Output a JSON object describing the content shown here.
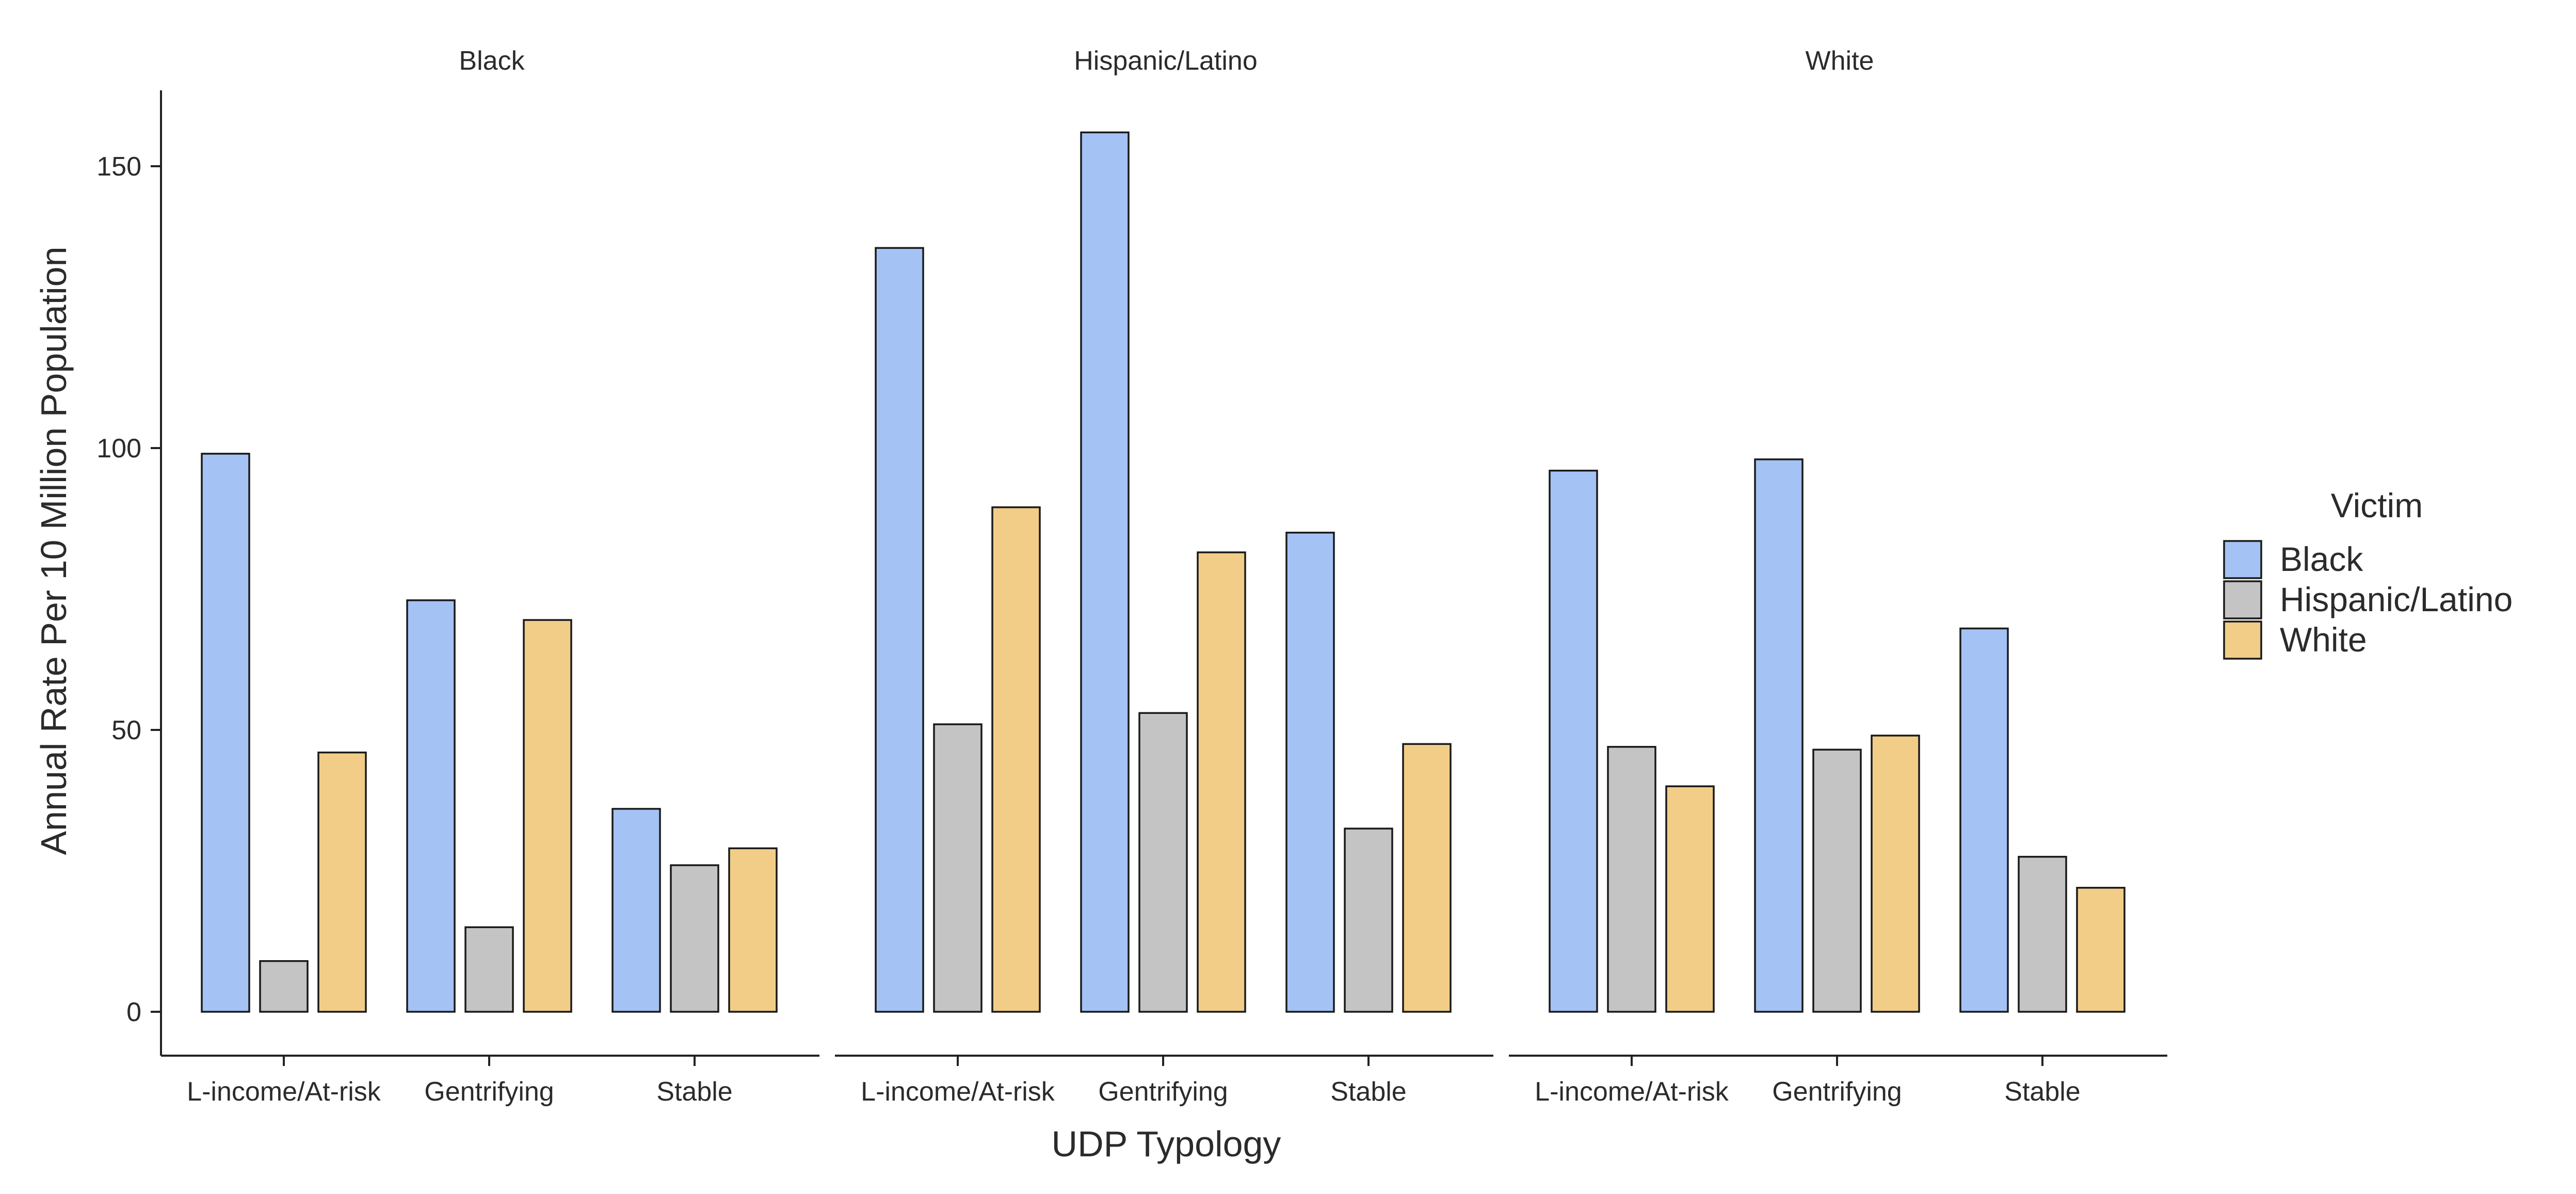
{
  "chart_data": {
    "type": "bar",
    "facet_by": "suspect race",
    "facets": [
      "Black",
      "Hispanic/Latino",
      "White"
    ],
    "categories": [
      "L-income/At-risk",
      "Gentrifying",
      "Stable"
    ],
    "xlabel": "UDP Typology",
    "ylabel": "Annual Rate Per 10 Million Population",
    "ylim": [
      0,
      160
    ],
    "yticks": [
      0,
      50,
      100,
      150
    ],
    "grid": false,
    "legend": {
      "title": "Victim",
      "position": "right",
      "entries": [
        {
          "name": "Black",
          "color": "#A4C2F4"
        },
        {
          "name": "Hispanic/Latino",
          "color": "#C4C4C4"
        },
        {
          "name": "White",
          "color": "#F1CD88"
        }
      ]
    },
    "panels": [
      {
        "facet": "Black",
        "series": [
          {
            "name": "Black",
            "values": [
              99,
              73,
              36
            ]
          },
          {
            "name": "Hispanic/Latino",
            "values": [
              9,
              15,
              26
            ]
          },
          {
            "name": "White",
            "values": [
              46,
              69.5,
              29
            ]
          }
        ]
      },
      {
        "facet": "Hispanic/Latino",
        "series": [
          {
            "name": "Black",
            "values": [
              135.5,
              156,
              85
            ]
          },
          {
            "name": "Hispanic/Latino",
            "values": [
              51,
              53,
              32.5
            ]
          },
          {
            "name": "White",
            "values": [
              89.5,
              81.5,
              47.5
            ]
          }
        ]
      },
      {
        "facet": "White",
        "series": [
          {
            "name": "Black",
            "values": [
              96,
              98,
              68
            ]
          },
          {
            "name": "Hispanic/Latino",
            "values": [
              47,
              46.5,
              27.5
            ]
          },
          {
            "name": "White",
            "values": [
              40,
              49,
              22
            ]
          }
        ]
      }
    ]
  }
}
